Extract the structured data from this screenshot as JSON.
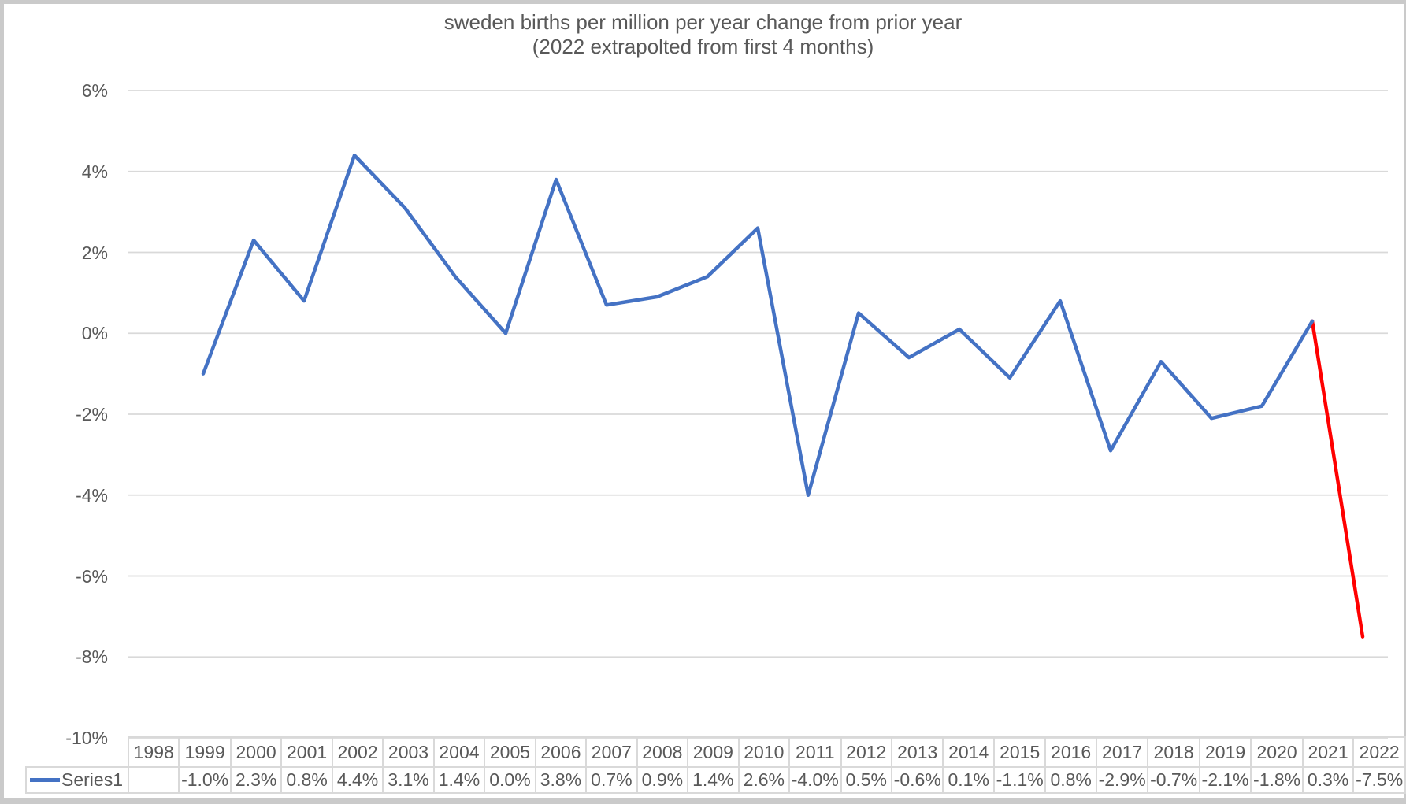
{
  "page": {
    "background_color": "#cacaca",
    "chart_background_color": "#ffffff"
  },
  "chart_data": {
    "type": "line",
    "title": "sweden births per million per year change from prior year",
    "subtitle": "(2022 extrapolted from first 4 months)",
    "categories": [
      "1998",
      "1999",
      "2000",
      "2001",
      "2002",
      "2003",
      "2004",
      "2005",
      "2006",
      "2007",
      "2008",
      "2009",
      "2010",
      "2011",
      "2012",
      "2013",
      "2014",
      "2015",
      "2016",
      "2017",
      "2018",
      "2019",
      "2020",
      "2021",
      "2022"
    ],
    "series": [
      {
        "name": "Series1",
        "color": "#4472C4",
        "values": [
          null,
          -1.0,
          2.3,
          0.8,
          4.4,
          3.1,
          1.4,
          0.0,
          3.8,
          0.7,
          0.9,
          1.4,
          2.6,
          -4.0,
          0.5,
          -0.6,
          0.1,
          -1.1,
          0.8,
          -2.9,
          -0.7,
          -2.1,
          -1.8,
          0.3,
          -7.5
        ]
      }
    ],
    "table_values": [
      "",
      "-1.0%",
      "2.3%",
      "0.8%",
      "4.4%",
      "3.1%",
      "1.4%",
      "0.0%",
      "3.8%",
      "0.7%",
      "0.9%",
      "1.4%",
      "2.6%",
      "-4.0%",
      "0.5%",
      "-0.6%",
      "0.1%",
      "-1.1%",
      "0.8%",
      "-2.9%",
      "-0.7%",
      "-2.1%",
      "-1.8%",
      "0.3%",
      "-7.5%"
    ],
    "highlight_segment": {
      "from_category": "2021",
      "to_category": "2022",
      "color": "#FF0000"
    },
    "ylim": [
      -10,
      6
    ],
    "ytick_values": [
      6,
      4,
      2,
      0,
      -2,
      -4,
      -6,
      -8,
      -10
    ],
    "ytick_labels": [
      "6%",
      "4%",
      "2%",
      "0%",
      "-2%",
      "-4%",
      "-6%",
      "-8%",
      "-10%"
    ],
    "grid": "horizontal",
    "gridline_color": "#d9d9d9",
    "text_color": "#595959",
    "legend_position": "data-table"
  }
}
